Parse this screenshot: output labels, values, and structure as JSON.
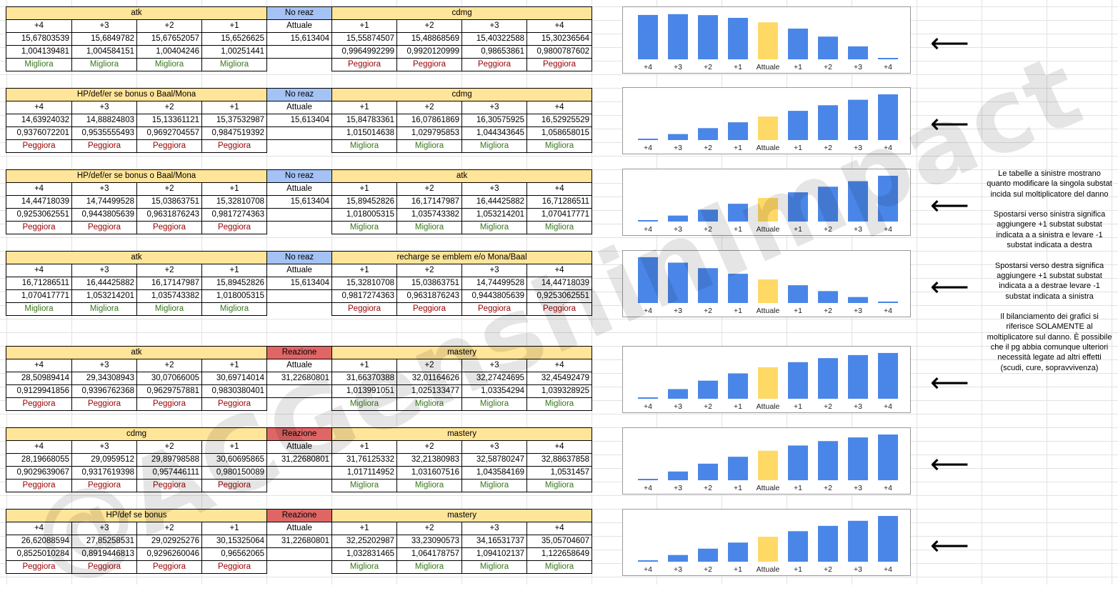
{
  "tables": [
    {
      "left_title": "atk",
      "center_title": "No reaz",
      "center_type": "blue",
      "right_title": "cdmg",
      "labels_left": [
        "+4",
        "+3",
        "+2",
        "+1"
      ],
      "label_center": "Attuale",
      "labels_right": [
        "+1",
        "+2",
        "+3",
        "+4"
      ],
      "row1_left": [
        "15,67803539",
        "15,6849782",
        "15,67652057",
        "15,6526625"
      ],
      "row1_center": "15,613404",
      "row1_right": [
        "15,55874507",
        "15,48868569",
        "15,40322588",
        "15,30236564"
      ],
      "row2_left": [
        "1,004139481",
        "1,004584151",
        "1,00404246",
        "1,00251441"
      ],
      "row2_center": "",
      "row2_right": [
        "0,9964992299",
        "0,9920120999",
        "0,98653861",
        "0,9800787602"
      ],
      "row3_left": [
        "Migliora",
        "Migliora",
        "Migliora",
        "Migliora"
      ],
      "row3_left_kind": "better",
      "row3_right": [
        "Peggiora",
        "Peggiora",
        "Peggiora",
        "Peggiora"
      ],
      "row3_right_kind": "worse"
    },
    {
      "left_title": "HP/def/er se bonus o Baal/Mona",
      "center_title": "No reaz",
      "center_type": "blue",
      "right_title": "cdmg",
      "labels_left": [
        "+4",
        "+3",
        "+2",
        "+1"
      ],
      "label_center": "Attuale",
      "labels_right": [
        "+1",
        "+2",
        "+3",
        "+4"
      ],
      "row1_left": [
        "14,63924032",
        "14,88824803",
        "15,13361121",
        "15,37532987"
      ],
      "row1_center": "15,613404",
      "row1_right": [
        "15,84783361",
        "16,07861869",
        "16,30575925",
        "16,52925529"
      ],
      "row2_left": [
        "0,9376072201",
        "0,9535555493",
        "0,9692704557",
        "0,9847519392"
      ],
      "row2_center": "",
      "row2_right": [
        "1,015014638",
        "1,029795853",
        "1,044343645",
        "1,058658015"
      ],
      "row3_left": [
        "Peggiora",
        "Peggiora",
        "Peggiora",
        "Peggiora"
      ],
      "row3_left_kind": "worse",
      "row3_right": [
        "Migliora",
        "Migliora",
        "Migliora",
        "Migliora"
      ],
      "row3_right_kind": "better"
    },
    {
      "left_title": "HP/def/er se bonus o Baal/Mona",
      "center_title": "No reaz",
      "center_type": "blue",
      "right_title": "atk",
      "labels_left": [
        "+4",
        "+3",
        "+2",
        "+1"
      ],
      "label_center": "Attuale",
      "labels_right": [
        "+1",
        "+2",
        "+3",
        "+4"
      ],
      "row1_left": [
        "14,44718039",
        "14,74499528",
        "15,03863751",
        "15,32810708"
      ],
      "row1_center": "15,613404",
      "row1_right": [
        "15,89452826",
        "16,17147987",
        "16,44425882",
        "16,71286511"
      ],
      "row2_left": [
        "0,9253062551",
        "0,9443805639",
        "0,9631876243",
        "0,9817274363"
      ],
      "row2_center": "",
      "row2_right": [
        "1,018005315",
        "1,035743382",
        "1,053214201",
        "1,070417771"
      ],
      "row3_left": [
        "Peggiora",
        "Peggiora",
        "Peggiora",
        "Peggiora"
      ],
      "row3_left_kind": "worse",
      "row3_right": [
        "Migliora",
        "Migliora",
        "Migliora",
        "Migliora"
      ],
      "row3_right_kind": "better"
    },
    {
      "left_title": "atk",
      "center_title": "No reaz",
      "center_type": "blue",
      "right_title": "recharge se emblem e/o Mona/Baal",
      "labels_left": [
        "+4",
        "+3",
        "+2",
        "+1"
      ],
      "label_center": "Attuale",
      "labels_right": [
        "+1",
        "+2",
        "+3",
        "+4"
      ],
      "row1_left": [
        "16,71286511",
        "16,44425882",
        "16,17147987",
        "15,89452826"
      ],
      "row1_center": "15,613404",
      "row1_right": [
        "15,32810708",
        "15,03863751",
        "14,74499528",
        "14,44718039"
      ],
      "row2_left": [
        "1,070417771",
        "1,053214201",
        "1,035743382",
        "1,018005315"
      ],
      "row2_center": "",
      "row2_right": [
        "0,9817274363",
        "0,9631876243",
        "0,9443805639",
        "0,9253062551"
      ],
      "row3_left": [
        "Migliora",
        "Migliora",
        "Migliora",
        "Migliora"
      ],
      "row3_left_kind": "better",
      "row3_right": [
        "Peggiora",
        "Peggiora",
        "Peggiora",
        "Peggiora"
      ],
      "row3_right_kind": "worse"
    },
    {
      "left_title": "atk",
      "center_title": "Reazione",
      "center_type": "red",
      "right_title": "mastery",
      "labels_left": [
        "+4",
        "+3",
        "+2",
        "+1"
      ],
      "label_center": "Attuale",
      "labels_right": [
        "+1",
        "+2",
        "+3",
        "+4"
      ],
      "row1_left": [
        "28,50989414",
        "29,34308943",
        "30,07066005",
        "30,69714014"
      ],
      "row1_center": "31,22680801",
      "row1_right": [
        "31,66370388",
        "32,01164626",
        "32,27424695",
        "32,45492479"
      ],
      "row2_left": [
        "0,9129941856",
        "0,9396762368",
        "0,9629757881",
        "0,9830380401"
      ],
      "row2_center": "",
      "row2_right": [
        "1,013991051",
        "1,025133477",
        "1,03354294",
        "1,039328925"
      ],
      "row3_left": [
        "Peggiora",
        "Peggiora",
        "Peggiora",
        "Peggiora"
      ],
      "row3_left_kind": "worse",
      "row3_right": [
        "Migliora",
        "Migliora",
        "Migliora",
        "Migliora"
      ],
      "row3_right_kind": "better"
    },
    {
      "left_title": "cdmg",
      "center_title": "Reazione",
      "center_type": "red",
      "right_title": "mastery",
      "labels_left": [
        "+4",
        "+3",
        "+2",
        "+1"
      ],
      "label_center": "Attuale",
      "labels_right": [
        "+1",
        "+2",
        "+3",
        "+4"
      ],
      "row1_left": [
        "28,19668055",
        "29,0959512",
        "29,89798588",
        "30,60695865"
      ],
      "row1_center": "31,22680801",
      "row1_right": [
        "31,76125332",
        "32,21380983",
        "32,58780247",
        "32,88637858"
      ],
      "row2_left": [
        "0,9029639067",
        "0,9317619398",
        "0,957446111",
        "0,980150089"
      ],
      "row2_center": "",
      "row2_right": [
        "1,017114952",
        "1,031607516",
        "1,043584169",
        "1,0531457"
      ],
      "row3_left": [
        "Peggiora",
        "Peggiora",
        "Peggiora",
        "Peggiora"
      ],
      "row3_left_kind": "worse",
      "row3_right": [
        "Migliora",
        "Migliora",
        "Migliora",
        "Migliora"
      ],
      "row3_right_kind": "better"
    },
    {
      "left_title": "HP/def se bonus",
      "center_title": "Reazione",
      "center_type": "red",
      "right_title": "mastery",
      "labels_left": [
        "+4",
        "+3",
        "+2",
        "+1"
      ],
      "label_center": "Attuale",
      "labels_right": [
        "+1",
        "+2",
        "+3",
        "+4"
      ],
      "row1_left": [
        "26,62088594",
        "27,85258531",
        "29,02925276",
        "30,15325064"
      ],
      "row1_center": "31,22680801",
      "row1_right": [
        "32,25202987",
        "33,23090573",
        "34,16531737",
        "35,05704607"
      ],
      "row2_left": [
        "0,8525010284",
        "0,8919446813",
        "0,9296260046",
        "0,96562065"
      ],
      "row2_center": "",
      "row2_right": [
        "1,032831465",
        "1,064178757",
        "1,094102137",
        "1,122658649"
      ],
      "row3_left": [
        "Peggiora",
        "Peggiora",
        "Peggiora",
        "Peggiora"
      ],
      "row3_left_kind": "worse",
      "row3_right": [
        "Migliora",
        "Migliora",
        "Migliora",
        "Migliora"
      ],
      "row3_right_kind": "better"
    }
  ],
  "chart_data": [
    {
      "type": "bar",
      "categories": [
        "+4",
        "+3",
        "+2",
        "+1",
        "Attuale",
        "+1",
        "+2",
        "+3",
        "+4"
      ],
      "values": [
        15.67803539,
        15.6849782,
        15.67652057,
        15.6526625,
        15.613404,
        15.55874507,
        15.48868569,
        15.40322588,
        15.30236564
      ],
      "highlight_index": 4,
      "ylim": [
        15.29,
        15.69
      ]
    },
    {
      "type": "bar",
      "categories": [
        "+4",
        "+3",
        "+2",
        "+1",
        "Attuale",
        "+1",
        "+2",
        "+3",
        "+4"
      ],
      "values": [
        14.63924032,
        14.88824803,
        15.13361121,
        15.37532987,
        15.613404,
        15.84783361,
        16.07861869,
        16.30575925,
        16.52925529
      ],
      "highlight_index": 4,
      "ylim": [
        14.64,
        16.53
      ]
    },
    {
      "type": "bar",
      "categories": [
        "+4",
        "+3",
        "+2",
        "+1",
        "Attuale",
        "+1",
        "+2",
        "+3",
        "+4"
      ],
      "values": [
        14.44718039,
        14.74499528,
        15.03863751,
        15.32810708,
        15.613404,
        15.89452826,
        16.17147987,
        16.44425882,
        16.71286511
      ],
      "highlight_index": 4,
      "ylim": [
        14.45,
        16.71
      ]
    },
    {
      "type": "bar",
      "categories": [
        "+4",
        "+3",
        "+2",
        "+1",
        "Attuale",
        "+1",
        "+2",
        "+3",
        "+4"
      ],
      "values": [
        16.71286511,
        16.44425882,
        16.17147987,
        15.89452826,
        15.613404,
        15.32810708,
        15.03863751,
        14.74499528,
        14.44718039
      ],
      "highlight_index": 4,
      "ylim": [
        14.45,
        16.71
      ]
    },
    {
      "type": "bar",
      "categories": [
        "+4",
        "+3",
        "+2",
        "+1",
        "Attuale",
        "+1",
        "+2",
        "+3",
        "+4"
      ],
      "values": [
        28.50989414,
        29.34308943,
        30.07066005,
        30.69714014,
        31.22680801,
        31.66370388,
        32.01164626,
        32.27424695,
        32.45492479
      ],
      "highlight_index": 4,
      "ylim": [
        28.51,
        32.45
      ]
    },
    {
      "type": "bar",
      "categories": [
        "+4",
        "+3",
        "+2",
        "+1",
        "Attuale",
        "+1",
        "+2",
        "+3",
        "+4"
      ],
      "values": [
        28.19668055,
        29.0959512,
        29.89798588,
        30.60695865,
        31.22680801,
        31.76125332,
        32.21380983,
        32.58780247,
        32.88637858
      ],
      "highlight_index": 4,
      "ylim": [
        28.2,
        32.89
      ]
    },
    {
      "type": "bar",
      "categories": [
        "+4",
        "+3",
        "+2",
        "+1",
        "Attuale",
        "+1",
        "+2",
        "+3",
        "+4"
      ],
      "values": [
        26.62088594,
        27.85258531,
        29.02925276,
        30.15325064,
        31.22680801,
        32.25202987,
        33.23090573,
        34.16531737,
        35.05704607
      ],
      "highlight_index": 4,
      "ylim": [
        26.62,
        35.06
      ]
    }
  ],
  "colors": {
    "bar": "#4a86e8",
    "bar_current": "#ffd966",
    "better": "#38761d",
    "worse": "#990000"
  },
  "arrow_glyph": "⟵",
  "note": {
    "p1": "Le tabelle a sinistre mostrano quanto modificare la singola substat incida sul moltiplicatore del danno",
    "p2": "Spostarsi verso sinistra significa aggiungere +1 substat substat indicata a a sinistra e levare -1 substat indicata a destra",
    "p3": "Spostarsi verso destra significa aggiungere +1 substat substat indicata a a destrae levare -1 substat indicata a sinistra",
    "p4": "Il bilanciamento dei grafici si riferisce SOLAMENTE al moltiplicatore sul danno. È possibile che il pg abbia comunque ulteriori necessità legate ad altri effetti (scudi, cure, sopravvivenza)"
  },
  "watermark": "@ACGenshinImpact"
}
